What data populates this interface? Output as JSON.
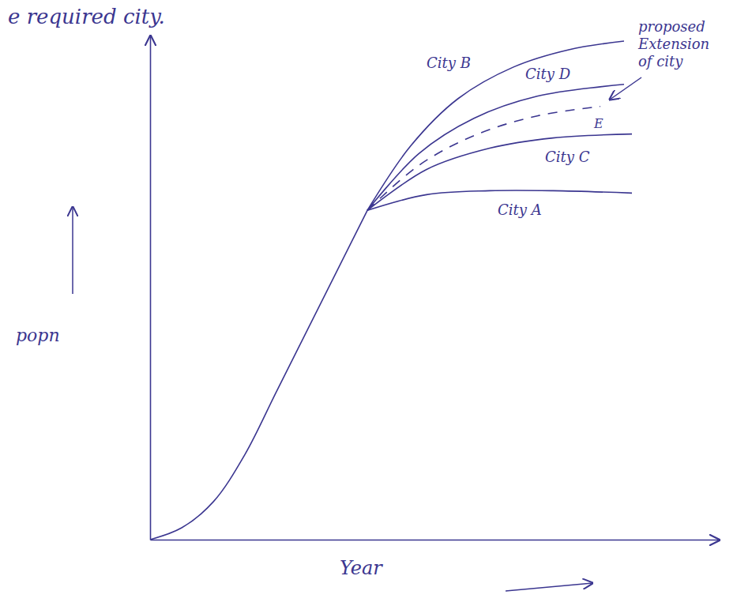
{
  "chart_data": {
    "type": "line",
    "title": "e required city.",
    "x_label": "Year",
    "y_label": "popn",
    "xlim": [
      0,
      720
    ],
    "ylim": [
      0,
      640
    ],
    "tick_labels": false,
    "color": "#3b3690",
    "annotation": "proposed Extension of city",
    "series": [
      {
        "x": [
          0,
          40,
          80,
          120,
          160,
          200,
          240,
          275
        ],
        "values": [
          0,
          15,
          48,
          108,
          188,
          268,
          348,
          418
        ],
        "line_style": "solid"
      },
      {
        "name": "City B",
        "x": [
          275,
          330,
          390,
          460,
          530,
          600
        ],
        "values": [
          418,
          500,
          560,
          600,
          622,
          633
        ],
        "line_style": "solid"
      },
      {
        "name": "City D",
        "x": [
          275,
          340,
          410,
          490,
          600
        ],
        "values": [
          418,
          490,
          535,
          563,
          578
        ],
        "line_style": "solid"
      },
      {
        "name": "E",
        "x": [
          275,
          340,
          410,
          490,
          570
        ],
        "values": [
          418,
          475,
          513,
          538,
          550
        ],
        "line_style": "dashed"
      },
      {
        "name": "City C",
        "x": [
          275,
          350,
          430,
          510,
          610
        ],
        "values": [
          418,
          470,
          497,
          510,
          515
        ],
        "line_style": "solid"
      },
      {
        "name": "City A",
        "x": [
          275,
          350,
          430,
          510,
          610
        ],
        "values": [
          418,
          438,
          443,
          443,
          440
        ],
        "line_style": "solid"
      }
    ]
  }
}
